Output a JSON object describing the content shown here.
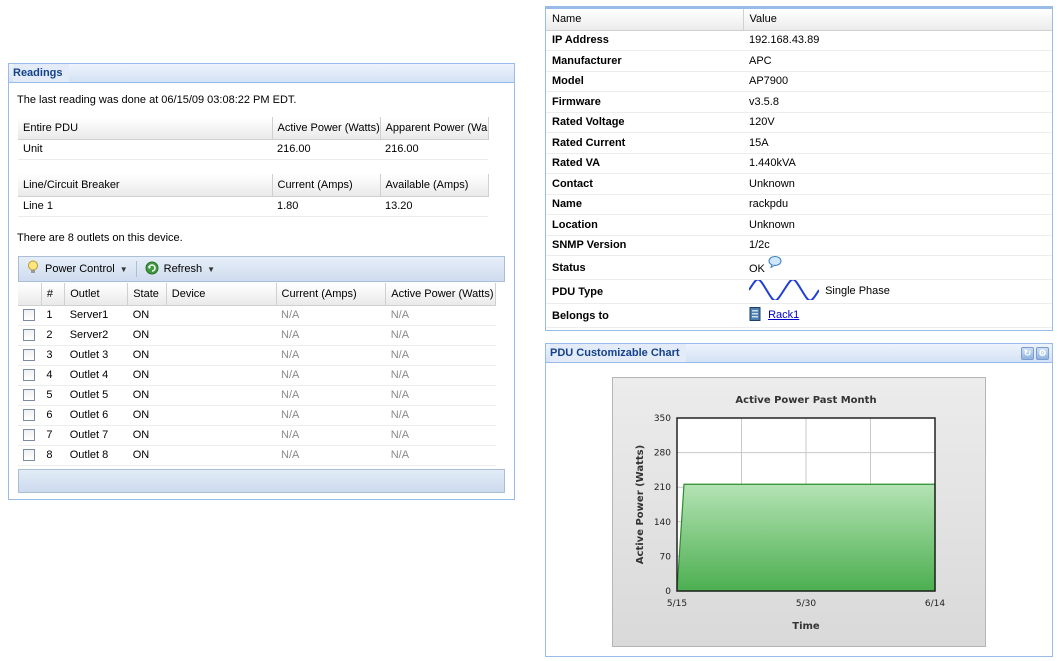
{
  "readings": {
    "title": "Readings",
    "last_reading": "The last reading was done at 06/15/09 03:08:22 PM EDT.",
    "entire_pdu": {
      "headers": [
        "Entire PDU",
        "Active Power (Watts)",
        "Apparent Power (Wa"
      ],
      "row": [
        "Unit",
        "216.00",
        "216.00"
      ]
    },
    "lines": {
      "headers": [
        "Line/Circuit Breaker",
        "Current (Amps)",
        "Available (Amps)"
      ],
      "row": [
        "Line 1",
        "1.80",
        "13.20"
      ]
    },
    "outlet_count": "There are 8 outlets on this device.",
    "toolbar": {
      "power_control": "Power Control",
      "refresh": "Refresh"
    },
    "outlets": {
      "headers": [
        "#",
        "Outlet",
        "State",
        "Device",
        "Current (Amps)",
        "Active Power (Watts)"
      ],
      "rows": [
        [
          "1",
          "Server1",
          "ON",
          "",
          "N/A",
          "N/A"
        ],
        [
          "2",
          "Server2",
          "ON",
          "",
          "N/A",
          "N/A"
        ],
        [
          "3",
          "Outlet 3",
          "ON",
          "",
          "N/A",
          "N/A"
        ],
        [
          "4",
          "Outlet 4",
          "ON",
          "",
          "N/A",
          "N/A"
        ],
        [
          "5",
          "Outlet 5",
          "ON",
          "",
          "N/A",
          "N/A"
        ],
        [
          "6",
          "Outlet 6",
          "ON",
          "",
          "N/A",
          "N/A"
        ],
        [
          "7",
          "Outlet 7",
          "ON",
          "",
          "N/A",
          "N/A"
        ],
        [
          "8",
          "Outlet 8",
          "ON",
          "",
          "N/A",
          "N/A"
        ]
      ]
    }
  },
  "properties": {
    "headers": [
      "Name",
      "Value"
    ],
    "rows": [
      [
        "IP Address",
        "192.168.43.89"
      ],
      [
        "Manufacturer",
        "APC"
      ],
      [
        "Model",
        "AP7900"
      ],
      [
        "Firmware",
        "v3.5.8"
      ],
      [
        "Rated Voltage",
        "120V"
      ],
      [
        "Rated Current",
        "15A"
      ],
      [
        "Rated VA",
        "1.440kVA"
      ],
      [
        "Contact",
        "Unknown"
      ],
      [
        "Name",
        "rackpdu"
      ],
      [
        "Location",
        "Unknown"
      ],
      [
        "SNMP Version",
        "1/2c"
      ]
    ],
    "status_label": "Status",
    "status_value": "OK",
    "pdu_type_label": "PDU Type",
    "pdu_type_value": "Single Phase",
    "belongs_label": "Belongs to",
    "belongs_value": "Rack1"
  },
  "chart_panel": {
    "title": "PDU Customizable Chart"
  },
  "chart_data": {
    "type": "area",
    "title": "Active Power Past Month",
    "xlabel": "Time",
    "ylabel": "Active Power (Watts)",
    "ylim": [
      0,
      350
    ],
    "yticks": [
      "0",
      "70",
      "140",
      "210",
      "280",
      "350"
    ],
    "xticks": [
      "5/15",
      "5/30",
      "6/14"
    ],
    "x": [
      "5/15",
      "5/15",
      "6/14"
    ],
    "values": [
      0,
      216,
      216
    ],
    "fill_color": "#4caf50",
    "grid": true
  },
  "icons": {
    "power_control": "lightbulb-icon",
    "refresh": "refresh-icon",
    "status": "speech-bubble-icon",
    "pdu_type": "sine-wave-icon",
    "rack": "rack-icon"
  }
}
